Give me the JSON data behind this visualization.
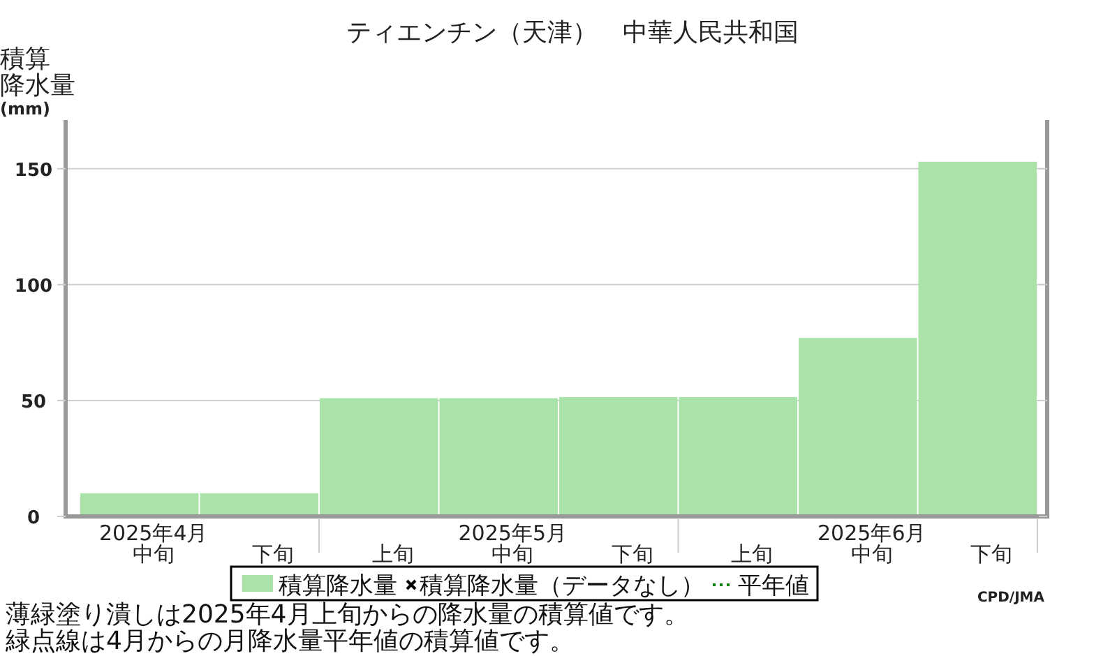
{
  "chart_data": {
    "type": "bar",
    "title": "ティエンチン（天津）　中華人民共和国",
    "ylabel": "積算降水量(mm)",
    "categories": [
      "中旬",
      "下旬",
      "上旬",
      "中旬",
      "下旬",
      "上旬",
      "中旬",
      "下旬"
    ],
    "series": [
      {
        "name": "積算降水量",
        "color": "#aae3aa",
        "values": [
          10,
          10,
          51,
          51,
          51.5,
          51.5,
          77,
          153
        ]
      },
      {
        "name": "積算降水量（データなし）",
        "type": "scatter",
        "marker": "cross",
        "color": "#000000",
        "values": [
          null,
          null,
          null,
          null,
          null,
          null,
          null,
          null
        ]
      },
      {
        "name": "平年値",
        "type": "line",
        "line_style": "dotted",
        "color": "#008000",
        "values": [
          null,
          null,
          null,
          null,
          null,
          null,
          null,
          null
        ]
      }
    ],
    "ylim": [
      0,
      171
    ],
    "yticks": [
      0,
      50,
      100,
      150
    ],
    "grid": "y",
    "legend": "bottom",
    "annotations": [
      "2025年4月",
      "2025年5月",
      "2025年6月",
      "CPD/JMA",
      "薄緑塗り潰しは2025年4月上旬からの降水量の積算値です。",
      "緑点線は4月からの月降水量平年値の積算値です。"
    ]
  }
}
